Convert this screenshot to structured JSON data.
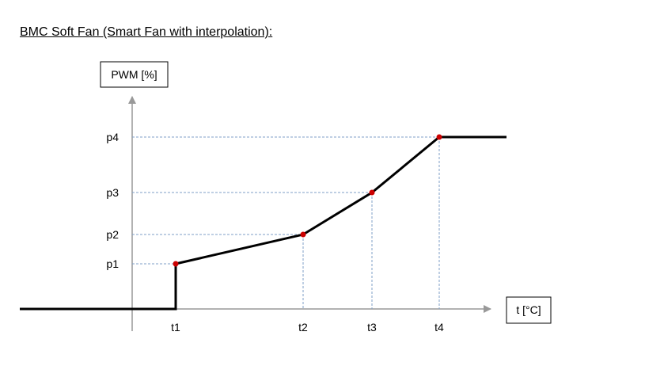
{
  "title": "BMC Soft Fan (Smart Fan with interpolation):",
  "y_axis_label": "PWM [%]",
  "x_axis_label": "t [°C]",
  "y_ticks": [
    "p1",
    "p2",
    "p3",
    "p4"
  ],
  "x_ticks": [
    "t1",
    "t2",
    "t3",
    "t4"
  ],
  "colors": {
    "curve": "#000000",
    "points": "#cc0000",
    "axes": "#999999",
    "guides": "#7f9fc7"
  }
}
